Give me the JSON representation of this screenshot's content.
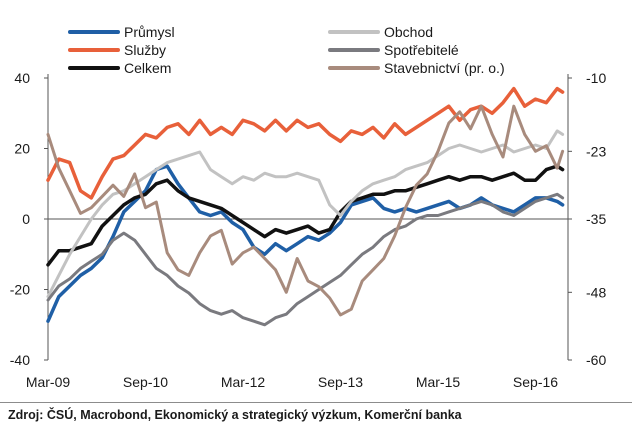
{
  "chart_data": {
    "type": "line",
    "x_ticks": [
      "Mar-09",
      "Sep-10",
      "Mar-12",
      "Sep-13",
      "Mar-15",
      "Sep-16"
    ],
    "x_tick_positions": [
      0,
      18,
      36,
      54,
      72,
      90
    ],
    "x_range": [
      0,
      96
    ],
    "left_axis": {
      "ticks": [
        40,
        20,
        0,
        -20,
        -40
      ],
      "range": [
        -40,
        40
      ]
    },
    "right_axis": {
      "ticks": [
        -10,
        -23,
        -35,
        -48,
        -60
      ],
      "range": [
        -60,
        -10
      ]
    },
    "grid": false,
    "legend": "top, two columns",
    "series": [
      {
        "name": "Průmysl",
        "axis": "left",
        "color": "#1f5fa6",
        "width": 3.5,
        "points": [
          [
            0,
            -29
          ],
          [
            2,
            -22
          ],
          [
            4,
            -19
          ],
          [
            6,
            -16
          ],
          [
            8,
            -14
          ],
          [
            10,
            -11
          ],
          [
            12,
            -5
          ],
          [
            14,
            2
          ],
          [
            16,
            5
          ],
          [
            18,
            8
          ],
          [
            20,
            14
          ],
          [
            22,
            15
          ],
          [
            24,
            10
          ],
          [
            26,
            6
          ],
          [
            28,
            2
          ],
          [
            30,
            1
          ],
          [
            32,
            2
          ],
          [
            34,
            -1
          ],
          [
            36,
            -3
          ],
          [
            38,
            -8
          ],
          [
            40,
            -10
          ],
          [
            42,
            -7
          ],
          [
            44,
            -9
          ],
          [
            46,
            -7
          ],
          [
            48,
            -5
          ],
          [
            50,
            -6
          ],
          [
            52,
            -4
          ],
          [
            54,
            -1
          ],
          [
            56,
            4
          ],
          [
            58,
            5
          ],
          [
            60,
            6
          ],
          [
            62,
            3
          ],
          [
            64,
            2
          ],
          [
            66,
            3
          ],
          [
            68,
            2
          ],
          [
            70,
            3
          ],
          [
            72,
            4
          ],
          [
            74,
            5
          ],
          [
            76,
            3
          ],
          [
            78,
            4
          ],
          [
            80,
            6
          ],
          [
            82,
            4
          ],
          [
            84,
            3
          ],
          [
            86,
            2
          ],
          [
            88,
            4
          ],
          [
            90,
            6
          ],
          [
            92,
            6
          ],
          [
            94,
            5
          ],
          [
            95,
            4
          ]
        ]
      },
      {
        "name": "Služby",
        "axis": "left",
        "color": "#e8603a",
        "width": 3.5,
        "points": [
          [
            0,
            11
          ],
          [
            2,
            17
          ],
          [
            4,
            16
          ],
          [
            6,
            8
          ],
          [
            8,
            6
          ],
          [
            10,
            12
          ],
          [
            12,
            17
          ],
          [
            14,
            18
          ],
          [
            16,
            21
          ],
          [
            18,
            24
          ],
          [
            20,
            23
          ],
          [
            22,
            26
          ],
          [
            24,
            27
          ],
          [
            26,
            24
          ],
          [
            28,
            28
          ],
          [
            30,
            24
          ],
          [
            32,
            26
          ],
          [
            34,
            24
          ],
          [
            36,
            28
          ],
          [
            38,
            27
          ],
          [
            40,
            25
          ],
          [
            42,
            28
          ],
          [
            44,
            25
          ],
          [
            46,
            28
          ],
          [
            48,
            26
          ],
          [
            50,
            27
          ],
          [
            52,
            24
          ],
          [
            54,
            22
          ],
          [
            56,
            25
          ],
          [
            58,
            24
          ],
          [
            60,
            26
          ],
          [
            62,
            23
          ],
          [
            64,
            27
          ],
          [
            66,
            24
          ],
          [
            68,
            26
          ],
          [
            70,
            28
          ],
          [
            72,
            30
          ],
          [
            74,
            32
          ],
          [
            76,
            28
          ],
          [
            78,
            31
          ],
          [
            80,
            32
          ],
          [
            82,
            30
          ],
          [
            84,
            33
          ],
          [
            86,
            37
          ],
          [
            88,
            32
          ],
          [
            90,
            34
          ],
          [
            92,
            33
          ],
          [
            94,
            37
          ],
          [
            95,
            36
          ]
        ]
      },
      {
        "name": "Celkem",
        "axis": "left",
        "color": "#111111",
        "width": 3.5,
        "points": [
          [
            0,
            -13
          ],
          [
            2,
            -9
          ],
          [
            4,
            -9
          ],
          [
            6,
            -8
          ],
          [
            8,
            -7
          ],
          [
            10,
            -2
          ],
          [
            12,
            1
          ],
          [
            14,
            4
          ],
          [
            16,
            6
          ],
          [
            18,
            7
          ],
          [
            20,
            10
          ],
          [
            22,
            11
          ],
          [
            24,
            8
          ],
          [
            26,
            6
          ],
          [
            28,
            5
          ],
          [
            30,
            4
          ],
          [
            32,
            3
          ],
          [
            34,
            1
          ],
          [
            36,
            -1
          ],
          [
            38,
            -3
          ],
          [
            40,
            -5
          ],
          [
            42,
            -3
          ],
          [
            44,
            -4
          ],
          [
            46,
            -3
          ],
          [
            48,
            -2
          ],
          [
            50,
            -4
          ],
          [
            52,
            -3
          ],
          [
            54,
            2
          ],
          [
            56,
            5
          ],
          [
            58,
            6
          ],
          [
            60,
            7
          ],
          [
            62,
            7
          ],
          [
            64,
            8
          ],
          [
            66,
            8
          ],
          [
            68,
            9
          ],
          [
            70,
            10
          ],
          [
            72,
            11
          ],
          [
            74,
            12
          ],
          [
            76,
            11
          ],
          [
            78,
            12
          ],
          [
            80,
            12
          ],
          [
            82,
            11
          ],
          [
            84,
            12
          ],
          [
            86,
            13
          ],
          [
            88,
            11
          ],
          [
            90,
            11
          ],
          [
            92,
            14
          ],
          [
            94,
            15
          ],
          [
            95,
            14
          ]
        ]
      },
      {
        "name": "Obchod",
        "axis": "left",
        "color": "#c2c2c2",
        "width": 3,
        "points": [
          [
            0,
            -22
          ],
          [
            2,
            -16
          ],
          [
            4,
            -10
          ],
          [
            6,
            -5
          ],
          [
            8,
            0
          ],
          [
            10,
            4
          ],
          [
            12,
            7
          ],
          [
            14,
            8
          ],
          [
            16,
            10
          ],
          [
            18,
            12
          ],
          [
            20,
            14
          ],
          [
            22,
            16
          ],
          [
            24,
            17
          ],
          [
            26,
            18
          ],
          [
            28,
            19
          ],
          [
            30,
            14
          ],
          [
            32,
            12
          ],
          [
            34,
            10
          ],
          [
            36,
            12
          ],
          [
            38,
            11
          ],
          [
            40,
            13
          ],
          [
            42,
            12
          ],
          [
            44,
            12
          ],
          [
            46,
            13
          ],
          [
            48,
            12
          ],
          [
            50,
            11
          ],
          [
            52,
            4
          ],
          [
            54,
            1
          ],
          [
            56,
            5
          ],
          [
            58,
            8
          ],
          [
            60,
            10
          ],
          [
            62,
            11
          ],
          [
            64,
            12
          ],
          [
            66,
            14
          ],
          [
            68,
            15
          ],
          [
            70,
            16
          ],
          [
            72,
            18
          ],
          [
            74,
            20
          ],
          [
            76,
            21
          ],
          [
            78,
            20
          ],
          [
            80,
            19
          ],
          [
            82,
            20
          ],
          [
            84,
            21
          ],
          [
            86,
            19
          ],
          [
            88,
            20
          ],
          [
            90,
            21
          ],
          [
            92,
            20
          ],
          [
            94,
            25
          ],
          [
            95,
            24
          ]
        ]
      },
      {
        "name": "Spotřebitelé",
        "axis": "left",
        "color": "#7a7a7f",
        "width": 3,
        "points": [
          [
            0,
            -23
          ],
          [
            2,
            -19
          ],
          [
            4,
            -17
          ],
          [
            6,
            -14
          ],
          [
            8,
            -12
          ],
          [
            10,
            -10
          ],
          [
            12,
            -6
          ],
          [
            14,
            -4
          ],
          [
            16,
            -6
          ],
          [
            18,
            -10
          ],
          [
            20,
            -14
          ],
          [
            22,
            -16
          ],
          [
            24,
            -19
          ],
          [
            26,
            -21
          ],
          [
            28,
            -24
          ],
          [
            30,
            -26
          ],
          [
            32,
            -27
          ],
          [
            34,
            -26
          ],
          [
            36,
            -28
          ],
          [
            38,
            -29
          ],
          [
            40,
            -30
          ],
          [
            42,
            -28
          ],
          [
            44,
            -27
          ],
          [
            46,
            -24
          ],
          [
            48,
            -22
          ],
          [
            50,
            -20
          ],
          [
            52,
            -18
          ],
          [
            54,
            -16
          ],
          [
            56,
            -13
          ],
          [
            58,
            -10
          ],
          [
            60,
            -8
          ],
          [
            62,
            -5
          ],
          [
            64,
            -3
          ],
          [
            66,
            -2
          ],
          [
            68,
            0
          ],
          [
            70,
            1
          ],
          [
            72,
            1
          ],
          [
            74,
            2
          ],
          [
            76,
            3
          ],
          [
            78,
            4
          ],
          [
            80,
            5
          ],
          [
            82,
            4
          ],
          [
            84,
            2
          ],
          [
            86,
            1
          ],
          [
            88,
            3
          ],
          [
            90,
            5
          ],
          [
            92,
            6
          ],
          [
            94,
            7
          ],
          [
            95,
            6
          ]
        ]
      },
      {
        "name": "Stavebnictví (pr. o.)",
        "axis": "right",
        "color": "#a88b7d",
        "width": 3,
        "points": [
          [
            0,
            -20
          ],
          [
            2,
            -26
          ],
          [
            4,
            -30
          ],
          [
            6,
            -34
          ],
          [
            8,
            -33
          ],
          [
            10,
            -31
          ],
          [
            12,
            -29
          ],
          [
            14,
            -31
          ],
          [
            16,
            -27
          ],
          [
            18,
            -33
          ],
          [
            20,
            -32
          ],
          [
            22,
            -41
          ],
          [
            24,
            -44
          ],
          [
            26,
            -45
          ],
          [
            28,
            -41
          ],
          [
            30,
            -38
          ],
          [
            32,
            -37
          ],
          [
            34,
            -43
          ],
          [
            36,
            -41
          ],
          [
            38,
            -40
          ],
          [
            40,
            -42
          ],
          [
            42,
            -44
          ],
          [
            44,
            -48
          ],
          [
            46,
            -42
          ],
          [
            48,
            -46
          ],
          [
            50,
            -47
          ],
          [
            52,
            -49
          ],
          [
            54,
            -52
          ],
          [
            56,
            -51
          ],
          [
            58,
            -46
          ],
          [
            60,
            -44
          ],
          [
            62,
            -42
          ],
          [
            64,
            -38
          ],
          [
            66,
            -33
          ],
          [
            68,
            -29
          ],
          [
            70,
            -27
          ],
          [
            72,
            -23
          ],
          [
            74,
            -18
          ],
          [
            76,
            -16
          ],
          [
            78,
            -19
          ],
          [
            80,
            -15
          ],
          [
            82,
            -20
          ],
          [
            84,
            -24
          ],
          [
            86,
            -15
          ],
          [
            88,
            -20
          ],
          [
            90,
            -23
          ],
          [
            92,
            -22
          ],
          [
            94,
            -26
          ],
          [
            95,
            -23
          ]
        ]
      }
    ]
  },
  "source_text": "Zdroj: ČSÚ, Macrobond, Ekonomický a strategický výzkum, Komerční banka"
}
